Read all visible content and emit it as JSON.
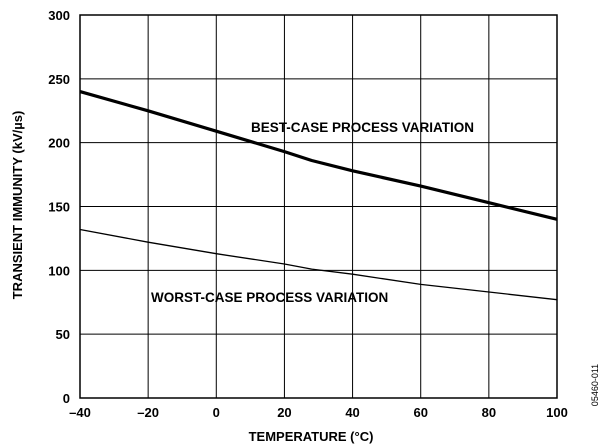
{
  "chart_data": {
    "type": "line",
    "title": "",
    "xlabel": "TEMPERATURE (°C)",
    "ylabel": "TRANSIENT IMMUNITY (kV/µs)",
    "xlim": [
      -40,
      100
    ],
    "ylim": [
      0,
      300
    ],
    "x_ticks": [
      -40,
      -20,
      0,
      20,
      40,
      60,
      80,
      100
    ],
    "x_tick_labels": [
      "–40",
      "–20",
      "0",
      "20",
      "40",
      "60",
      "80",
      "100"
    ],
    "y_ticks": [
      0,
      50,
      100,
      150,
      200,
      250,
      300
    ],
    "y_tick_labels": [
      "0",
      "50",
      "100",
      "150",
      "200",
      "250",
      "300"
    ],
    "grid": true,
    "legend": "none",
    "series": [
      {
        "name": "BEST-CASE PROCESS VARIATION",
        "line_width": "thick",
        "x": [
          -40,
          -20,
          0,
          20,
          28,
          40,
          60,
          80,
          100
        ],
        "y": [
          240,
          225,
          209,
          193,
          186,
          178,
          166,
          153,
          140
        ]
      },
      {
        "name": "WORST-CASE PROCESS VARIATION",
        "line_width": "thin",
        "x": [
          -40,
          -20,
          0,
          20,
          28,
          40,
          60,
          80,
          100
        ],
        "y": [
          132,
          122,
          113,
          105,
          101,
          97,
          89,
          83,
          77
        ]
      }
    ],
    "figure_id": "05460-011"
  }
}
